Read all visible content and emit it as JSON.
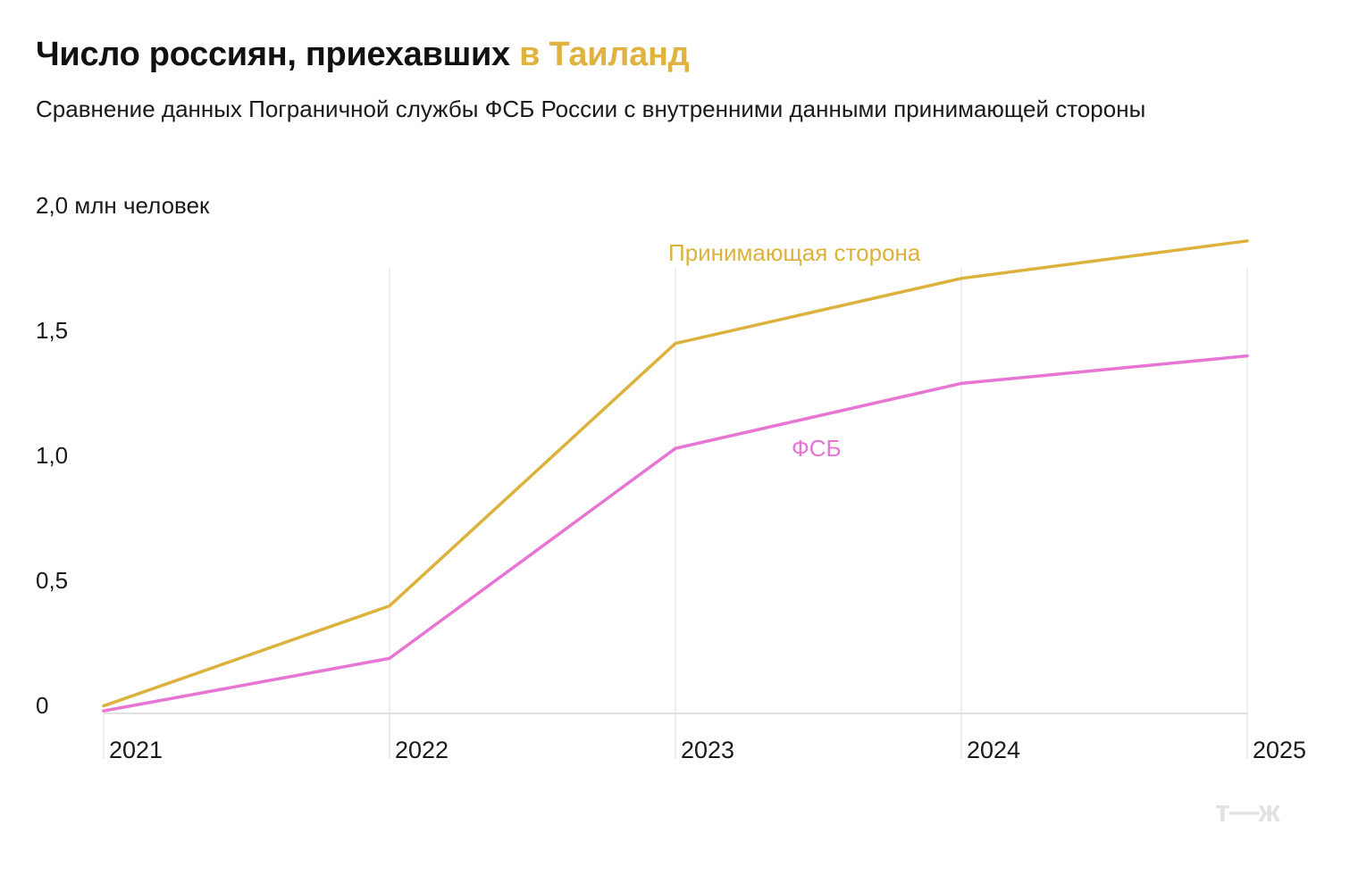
{
  "header": {
    "title_main": "Число россиян, приехавших",
    "title_accent": "в Таиланд",
    "subtitle": "Сравнение данных Пограничной службы ФСБ России с внутренними данными принимающей стороны"
  },
  "colors": {
    "host": "#dcb13c",
    "fsb": "#e775d4",
    "grid": "#e2e2e2",
    "axis": "#cfcfcf",
    "title_accent": "#e0b341"
  },
  "chart_data": {
    "type": "line",
    "x": [
      "2021",
      "2022",
      "2023",
      "2024",
      "2025"
    ],
    "ylim": [
      0,
      2.0
    ],
    "yticks": [
      "0",
      "0,5",
      "1,0",
      "1,5",
      "2,0 млн человек"
    ],
    "ytick_values": [
      0,
      0.5,
      1.0,
      1.5,
      2.0
    ],
    "grid": "vertical",
    "series": [
      {
        "name": "Принимающая сторона",
        "values": [
          0.03,
          0.43,
          1.48,
          1.74,
          1.89
        ]
      },
      {
        "name": "ФСБ",
        "values": [
          0.01,
          0.22,
          1.06,
          1.32,
          1.43
        ]
      }
    ]
  },
  "watermark": "т—ж"
}
